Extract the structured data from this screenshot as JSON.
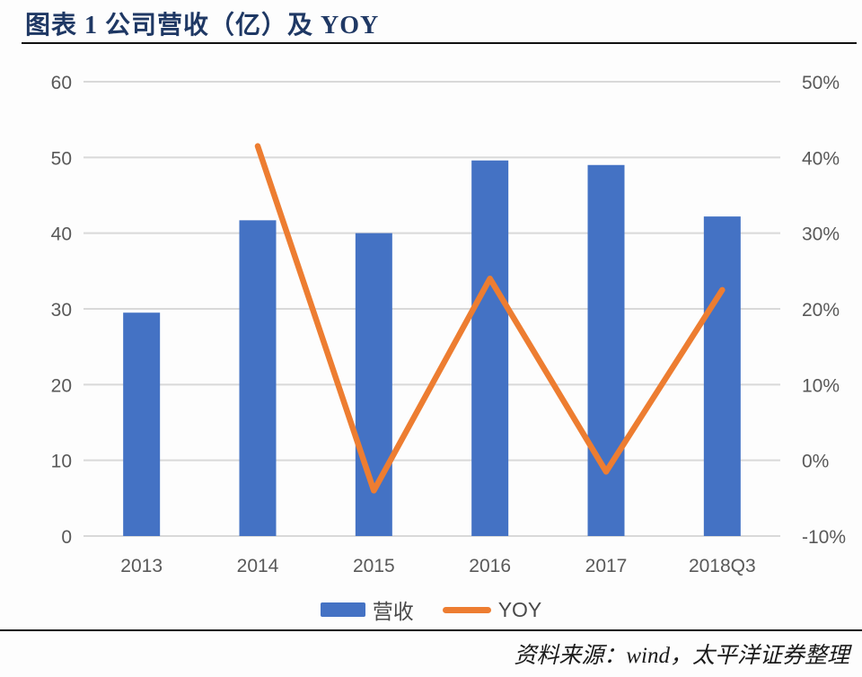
{
  "title": "图表 1 公司营收（亿）及 YOY",
  "source": "资料来源：wind，太平洋证券整理",
  "legend": {
    "bar_label": "营收",
    "line_label": "YOY"
  },
  "colors": {
    "bar": "#4472C4",
    "line": "#ED7D31",
    "title": "#1F3864",
    "axis_text": "#595959",
    "gridline": "#D9D9D9",
    "rule": "#111111"
  },
  "chart_data": {
    "type": "bar",
    "subtype": "bar-line-combo",
    "title": "图表 1 公司营收（亿）及 YOY",
    "categories": [
      "2013",
      "2014",
      "2015",
      "2016",
      "2017",
      "2018Q3"
    ],
    "series": [
      {
        "name": "营收",
        "type": "bar",
        "axis": "left",
        "values": [
          29.5,
          41.7,
          40,
          49.6,
          49,
          42.2
        ]
      },
      {
        "name": "YOY",
        "type": "line",
        "axis": "right",
        "unit": "%",
        "values": [
          null,
          41.5,
          -4,
          24,
          -1.5,
          22.5
        ]
      }
    ],
    "left_axis": {
      "min": 0,
      "max": 60,
      "step": 10,
      "ticks": [
        "0",
        "10",
        "20",
        "30",
        "40",
        "50",
        "60"
      ]
    },
    "right_axis": {
      "min": -10,
      "max": 50,
      "step": 10,
      "ticks": [
        "-10%",
        "0%",
        "10%",
        "20%",
        "30%",
        "40%",
        "50%"
      ]
    },
    "grid": true,
    "legend_position": "bottom"
  }
}
